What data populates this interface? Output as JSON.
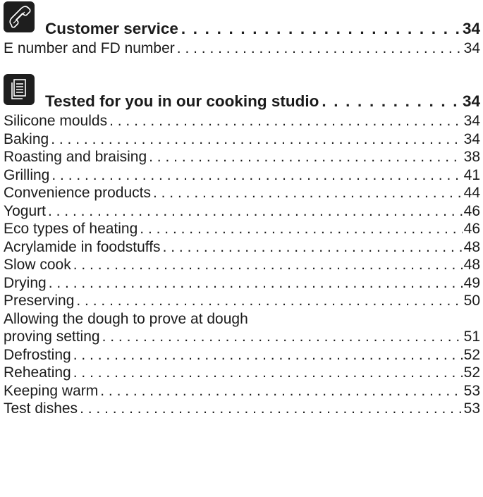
{
  "sections": [
    {
      "icon": "phone-icon",
      "heading": "Customer service",
      "heading_page": "34",
      "entries": [
        {
          "label": "E number and FD number",
          "page": "34"
        }
      ]
    },
    {
      "icon": "document-icon",
      "heading": "Tested for you in our cooking studio",
      "heading_page": "34",
      "entries": [
        {
          "label": "Silicone moulds",
          "page": "34"
        },
        {
          "label": "Baking",
          "page": "34"
        },
        {
          "label": "Roasting and braising",
          "page": "38"
        },
        {
          "label": "Grilling",
          "page": "41"
        },
        {
          "label": "Convenience products",
          "page": "44"
        },
        {
          "label": "Yogurt",
          "page": "46"
        },
        {
          "label": "Eco types of heating",
          "page": "46"
        },
        {
          "label": "Acrylamide in foodstuffs",
          "page": "48"
        },
        {
          "label": "Slow cook",
          "page": "48"
        },
        {
          "label": "Drying",
          "page": "49"
        },
        {
          "label": "Preserving",
          "page": "50"
        },
        {
          "label_line1": "Allowing the dough to prove at dough",
          "label_line2": "proving setting",
          "page": "51"
        },
        {
          "label": "Defrosting",
          "page": "52"
        },
        {
          "label": "Reheating",
          "page": "52"
        },
        {
          "label": "Keeping warm",
          "page": "53"
        },
        {
          "label": "Test dishes",
          "page": "53"
        }
      ]
    }
  ]
}
